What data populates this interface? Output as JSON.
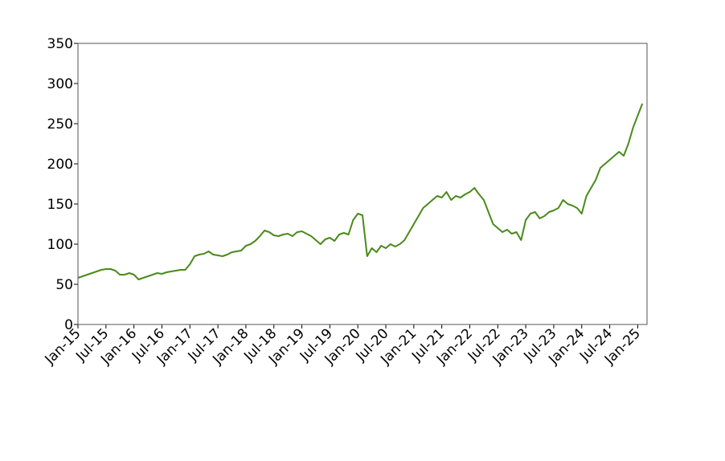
{
  "chart_data": {
    "type": "line",
    "x": [
      "2015-01",
      "2015-02",
      "2015-03",
      "2015-04",
      "2015-05",
      "2015-06",
      "2015-07",
      "2015-08",
      "2015-09",
      "2015-10",
      "2015-11",
      "2015-12",
      "2016-01",
      "2016-02",
      "2016-03",
      "2016-04",
      "2016-05",
      "2016-06",
      "2016-07",
      "2016-08",
      "2016-09",
      "2016-10",
      "2016-11",
      "2016-12",
      "2017-01",
      "2017-02",
      "2017-03",
      "2017-04",
      "2017-05",
      "2017-06",
      "2017-07",
      "2017-08",
      "2017-09",
      "2017-10",
      "2017-11",
      "2017-12",
      "2018-01",
      "2018-02",
      "2018-03",
      "2018-04",
      "2018-05",
      "2018-06",
      "2018-07",
      "2018-08",
      "2018-09",
      "2018-10",
      "2018-11",
      "2018-12",
      "2019-01",
      "2019-02",
      "2019-03",
      "2019-04",
      "2019-05",
      "2019-06",
      "2019-07",
      "2019-08",
      "2019-09",
      "2019-10",
      "2019-11",
      "2019-12",
      "2020-01",
      "2020-02",
      "2020-03",
      "2020-04",
      "2020-05",
      "2020-06",
      "2020-07",
      "2020-08",
      "2020-09",
      "2020-10",
      "2020-11",
      "2020-12",
      "2021-01",
      "2021-02",
      "2021-03",
      "2021-04",
      "2021-05",
      "2021-06",
      "2021-07",
      "2021-08",
      "2021-09",
      "2021-10",
      "2021-11",
      "2021-12",
      "2022-01",
      "2022-02",
      "2022-03",
      "2022-04",
      "2022-05",
      "2022-06",
      "2022-07",
      "2022-08",
      "2022-09",
      "2022-10",
      "2022-11",
      "2022-12",
      "2023-01",
      "2023-02",
      "2023-03",
      "2023-04",
      "2023-05",
      "2023-06",
      "2023-07",
      "2023-08",
      "2023-09",
      "2023-10",
      "2023-11",
      "2023-12",
      "2024-01",
      "2024-02",
      "2024-03",
      "2024-04",
      "2024-05",
      "2024-06",
      "2024-07",
      "2024-08",
      "2024-09",
      "2024-10",
      "2024-11",
      "2024-12",
      "2025-01",
      "2025-02"
    ],
    "series": [
      {
        "color": "#4a8a1a",
        "values": [
          58,
          60,
          62,
          64,
          66,
          68,
          69,
          69,
          67,
          62,
          62,
          64,
          62,
          56,
          58,
          60,
          62,
          64,
          63,
          65,
          66,
          67,
          68,
          68,
          75,
          85,
          87,
          88,
          91,
          87,
          86,
          85,
          87,
          90,
          91,
          92,
          98,
          100,
          104,
          110,
          117,
          115,
          111,
          110,
          112,
          113,
          110,
          115,
          116,
          113,
          110,
          105,
          100,
          106,
          108,
          104,
          112,
          114,
          112,
          130,
          138,
          136,
          85,
          95,
          90,
          98,
          95,
          100,
          97,
          100,
          105,
          115,
          125,
          135,
          145,
          150,
          155,
          160,
          158,
          165,
          155,
          160,
          158,
          162,
          165,
          170,
          162,
          155,
          140,
          125,
          120,
          115,
          118,
          113,
          115,
          105,
          130,
          138,
          140,
          132,
          135,
          140,
          142,
          145,
          155,
          150,
          148,
          145,
          138,
          160,
          170,
          180,
          195,
          200,
          205,
          210,
          215,
          210,
          225,
          245,
          260,
          275
        ]
      }
    ],
    "xlim": [
      "2015-01",
      "2025-03"
    ],
    "xticks": [
      {
        "value": "2015-01",
        "label": "Jan-15"
      },
      {
        "value": "2015-07",
        "label": "Jul-15"
      },
      {
        "value": "2016-01",
        "label": "Jan-16"
      },
      {
        "value": "2016-07",
        "label": "Jul-16"
      },
      {
        "value": "2017-01",
        "label": "Jan-17"
      },
      {
        "value": "2017-07",
        "label": "Jul-17"
      },
      {
        "value": "2018-01",
        "label": "Jan-18"
      },
      {
        "value": "2018-07",
        "label": "Jul-18"
      },
      {
        "value": "2019-01",
        "label": "Jan-19"
      },
      {
        "value": "2019-07",
        "label": "Jul-19"
      },
      {
        "value": "2020-01",
        "label": "Jan-20"
      },
      {
        "value": "2020-07",
        "label": "Jul-20"
      },
      {
        "value": "2021-01",
        "label": "Jan-21"
      },
      {
        "value": "2021-07",
        "label": "Jul-21"
      },
      {
        "value": "2022-01",
        "label": "Jan-22"
      },
      {
        "value": "2022-07",
        "label": "Jul-22"
      },
      {
        "value": "2023-01",
        "label": "Jan-23"
      },
      {
        "value": "2023-07",
        "label": "Jul-23"
      },
      {
        "value": "2024-01",
        "label": "Jan-24"
      },
      {
        "value": "2024-07",
        "label": "Jul-24"
      },
      {
        "value": "2025-01",
        "label": "Jan-25"
      }
    ],
    "ylim": [
      0,
      350
    ],
    "yticks": [
      0,
      50,
      100,
      150,
      200,
      250,
      300,
      350
    ],
    "grid": false
  }
}
